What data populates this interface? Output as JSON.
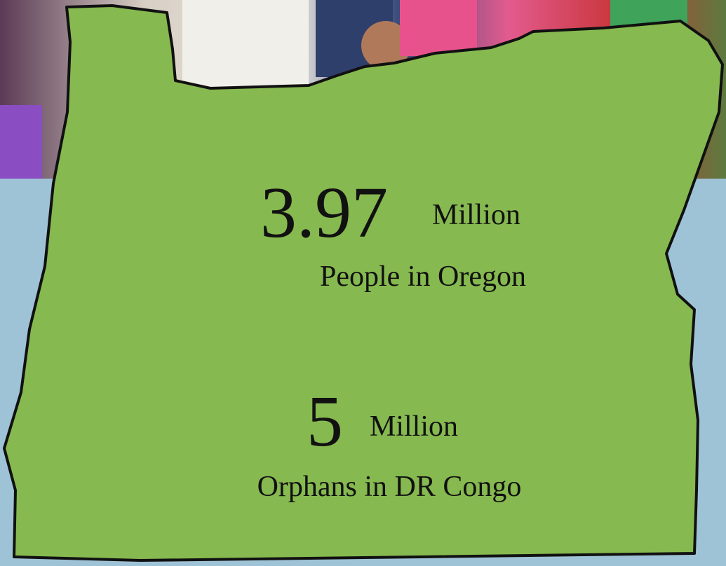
{
  "stats": [
    {
      "number": "3.97",
      "unit": "Million",
      "label": "People in Oregon"
    },
    {
      "number": "5",
      "unit": "Million",
      "label": "Orphans in DR Congo"
    }
  ]
}
